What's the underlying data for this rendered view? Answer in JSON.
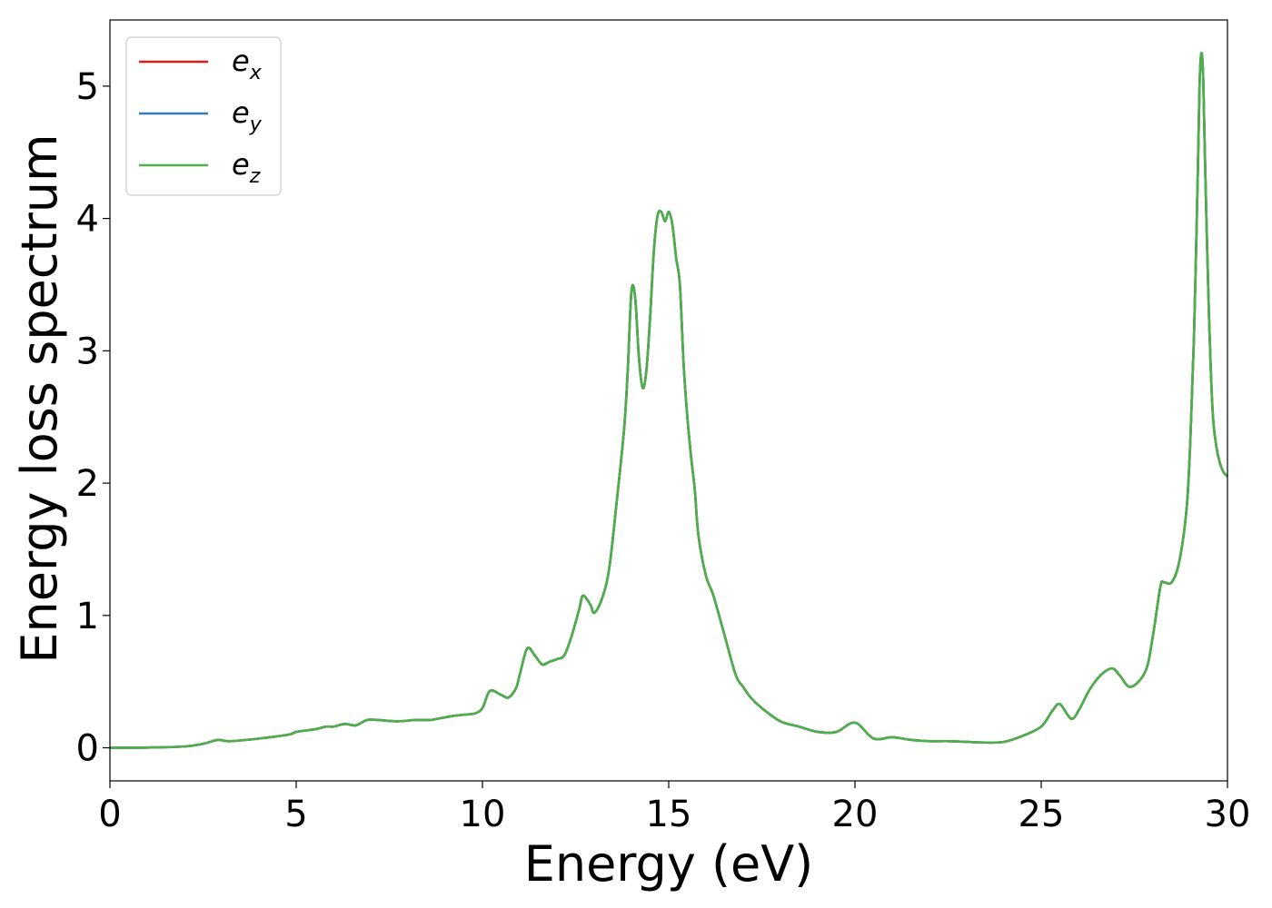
{
  "chart_data": {
    "type": "line",
    "title": "",
    "xlabel": "Energy (eV)",
    "ylabel": "Energy loss spectrum",
    "xlim": [
      0,
      30
    ],
    "ylim": [
      -0.25,
      5.5
    ],
    "xticks": [
      0,
      5,
      10,
      15,
      20,
      25,
      30
    ],
    "xtick_labels": [
      "0",
      "5",
      "10",
      "15",
      "20",
      "25",
      "30"
    ],
    "yticks": [
      0,
      1,
      2,
      3,
      4,
      5
    ],
    "ytick_labels": [
      "0",
      "1",
      "2",
      "3",
      "4",
      "5"
    ],
    "grid": false,
    "legend_position": "top-left",
    "x": [
      0,
      1,
      2,
      2.5,
      2.9,
      3.2,
      4,
      4.8,
      5,
      5.5,
      5.8,
      6,
      6.3,
      6.6,
      6.9,
      7.2,
      7.7,
      8.2,
      8.6,
      8.8,
      9,
      9.2,
      9.5,
      9.8,
      10,
      10.2,
      10.5,
      10.7,
      10.9,
      11,
      11.2,
      11.4,
      11.6,
      11.8,
      12,
      12.2,
      12.4,
      12.6,
      12.7,
      12.9,
      13,
      13.2,
      13.4,
      13.6,
      13.8,
      13.9,
      14,
      14.1,
      14.2,
      14.3,
      14.4,
      14.5,
      14.6,
      14.7,
      14.8,
      14.9,
      15,
      15.1,
      15.2,
      15.3,
      15.4,
      15.5,
      15.6,
      15.7,
      15.8,
      16,
      16.2,
      16.5,
      16.8,
      17,
      17.2,
      17.5,
      18,
      18.5,
      19,
      19.5,
      20,
      20.5,
      21,
      21.5,
      22,
      22.5,
      23,
      23.5,
      24,
      24.5,
      25,
      25.3,
      25.5,
      25.8,
      26,
      26.3,
      26.6,
      26.9,
      27.1,
      27.4,
      27.8,
      28,
      28.2,
      28.3,
      28.5,
      28.7,
      28.9,
      29,
      29.1,
      29.2,
      29.25,
      29.3,
      29.35,
      29.4,
      29.5,
      29.6,
      29.7,
      29.8,
      29.9,
      30
    ],
    "series": [
      {
        "name": "e_x",
        "color": "#e41a1c",
        "y": [
          0,
          0.002,
          0.01,
          0.03,
          0.06,
          0.05,
          0.07,
          0.1,
          0.12,
          0.14,
          0.16,
          0.16,
          0.18,
          0.17,
          0.21,
          0.21,
          0.2,
          0.21,
          0.21,
          0.22,
          0.23,
          0.24,
          0.25,
          0.26,
          0.3,
          0.43,
          0.4,
          0.38,
          0.45,
          0.55,
          0.75,
          0.7,
          0.63,
          0.65,
          0.67,
          0.7,
          0.85,
          1.05,
          1.15,
          1.08,
          1.02,
          1.12,
          1.35,
          1.85,
          2.4,
          2.85,
          3.45,
          3.4,
          2.95,
          2.72,
          2.85,
          3.25,
          3.75,
          4.02,
          4.05,
          3.98,
          4.05,
          3.95,
          3.7,
          3.5,
          2.9,
          2.5,
          2.2,
          1.95,
          1.6,
          1.3,
          1.15,
          0.85,
          0.55,
          0.46,
          0.38,
          0.3,
          0.2,
          0.16,
          0.12,
          0.12,
          0.19,
          0.07,
          0.08,
          0.06,
          0.05,
          0.05,
          0.045,
          0.04,
          0.045,
          0.09,
          0.16,
          0.28,
          0.33,
          0.22,
          0.28,
          0.44,
          0.55,
          0.6,
          0.55,
          0.46,
          0.58,
          0.85,
          1.22,
          1.25,
          1.25,
          1.4,
          1.8,
          2.3,
          3.1,
          4.3,
          5.0,
          5.25,
          5.05,
          4.4,
          3.3,
          2.55,
          2.28,
          2.15,
          2.08,
          2.05
        ]
      },
      {
        "name": "e_y",
        "color": "#377eb8",
        "y": [
          0,
          0.002,
          0.01,
          0.03,
          0.06,
          0.05,
          0.07,
          0.1,
          0.12,
          0.14,
          0.16,
          0.16,
          0.18,
          0.17,
          0.21,
          0.21,
          0.2,
          0.21,
          0.21,
          0.22,
          0.23,
          0.24,
          0.25,
          0.26,
          0.3,
          0.43,
          0.4,
          0.38,
          0.45,
          0.55,
          0.75,
          0.7,
          0.63,
          0.65,
          0.67,
          0.7,
          0.85,
          1.05,
          1.15,
          1.08,
          1.02,
          1.12,
          1.35,
          1.85,
          2.4,
          2.85,
          3.45,
          3.4,
          2.95,
          2.72,
          2.85,
          3.25,
          3.75,
          4.02,
          4.05,
          3.98,
          4.05,
          3.95,
          3.7,
          3.5,
          2.9,
          2.5,
          2.2,
          1.95,
          1.6,
          1.3,
          1.15,
          0.85,
          0.55,
          0.46,
          0.38,
          0.3,
          0.2,
          0.16,
          0.12,
          0.12,
          0.19,
          0.07,
          0.08,
          0.06,
          0.05,
          0.05,
          0.045,
          0.04,
          0.045,
          0.09,
          0.16,
          0.28,
          0.33,
          0.22,
          0.28,
          0.44,
          0.55,
          0.6,
          0.55,
          0.46,
          0.58,
          0.85,
          1.22,
          1.25,
          1.25,
          1.4,
          1.8,
          2.3,
          3.1,
          4.3,
          5.0,
          5.25,
          5.05,
          4.4,
          3.3,
          2.55,
          2.28,
          2.15,
          2.08,
          2.05
        ]
      },
      {
        "name": "e_z",
        "color": "#4daf4a",
        "y": [
          0,
          0.002,
          0.01,
          0.03,
          0.06,
          0.05,
          0.07,
          0.1,
          0.12,
          0.14,
          0.16,
          0.16,
          0.18,
          0.17,
          0.21,
          0.21,
          0.2,
          0.21,
          0.21,
          0.22,
          0.23,
          0.24,
          0.25,
          0.26,
          0.3,
          0.43,
          0.4,
          0.38,
          0.45,
          0.55,
          0.75,
          0.7,
          0.63,
          0.65,
          0.67,
          0.7,
          0.85,
          1.05,
          1.15,
          1.08,
          1.02,
          1.12,
          1.35,
          1.85,
          2.4,
          2.85,
          3.45,
          3.4,
          2.95,
          2.72,
          2.85,
          3.25,
          3.75,
          4.02,
          4.05,
          3.98,
          4.05,
          3.95,
          3.7,
          3.5,
          2.9,
          2.5,
          2.2,
          1.95,
          1.6,
          1.3,
          1.15,
          0.85,
          0.55,
          0.46,
          0.38,
          0.3,
          0.2,
          0.16,
          0.12,
          0.12,
          0.19,
          0.07,
          0.08,
          0.06,
          0.05,
          0.05,
          0.045,
          0.04,
          0.045,
          0.09,
          0.16,
          0.28,
          0.33,
          0.22,
          0.28,
          0.44,
          0.55,
          0.6,
          0.55,
          0.46,
          0.58,
          0.85,
          1.22,
          1.25,
          1.25,
          1.4,
          1.8,
          2.3,
          3.1,
          4.3,
          5.0,
          5.25,
          5.05,
          4.4,
          3.3,
          2.55,
          2.28,
          2.15,
          2.08,
          2.05
        ]
      }
    ],
    "legend": [
      {
        "base": "e",
        "sub": "x"
      },
      {
        "base": "e",
        "sub": "y"
      },
      {
        "base": "e",
        "sub": "z"
      }
    ]
  }
}
